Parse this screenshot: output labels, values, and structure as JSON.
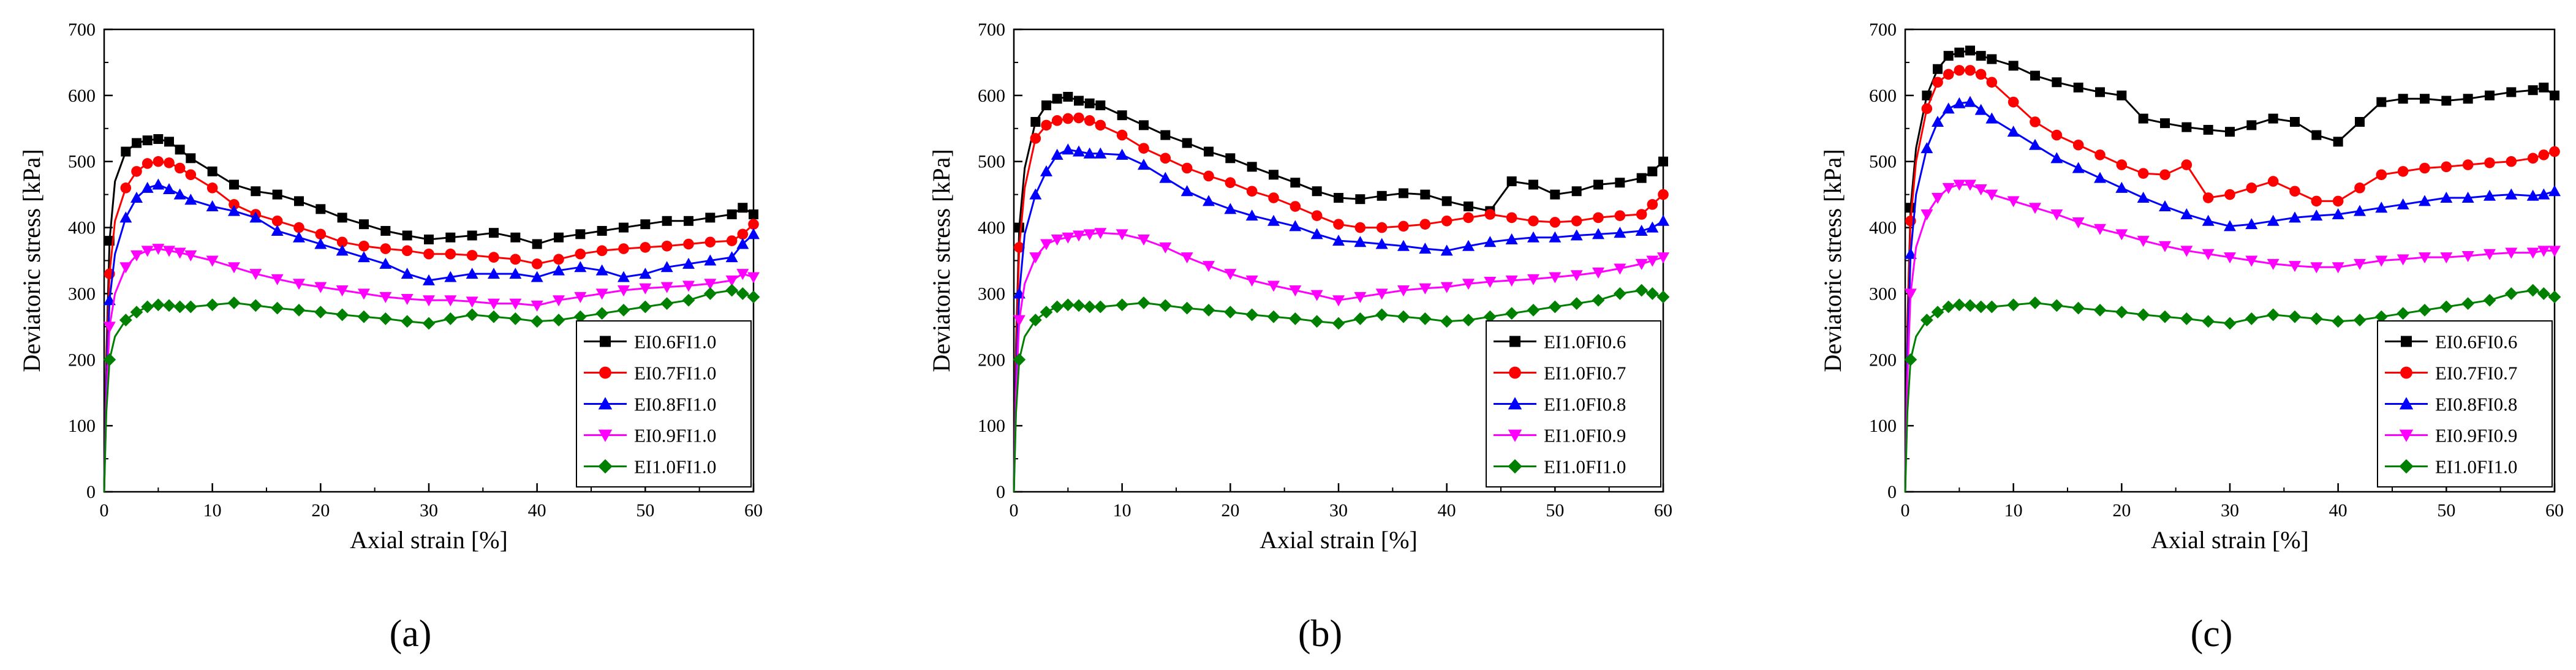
{
  "figure": {
    "common": {
      "xlabel": "Axial strain [%]",
      "ylabel": "Deviatoric stress [kPa]",
      "xlim": [
        0,
        60
      ],
      "ylim": [
        0,
        700
      ],
      "xticks": [
        0,
        10,
        20,
        30,
        40,
        50,
        60
      ],
      "yticks": [
        0,
        100,
        200,
        300,
        400,
        500,
        600,
        700
      ],
      "colors": [
        "#000000",
        "#ff0000",
        "#0000ff",
        "#ff00ff",
        "#008000"
      ],
      "markers": [
        "square",
        "circle",
        "triangle-up",
        "triangle-down",
        "diamond"
      ]
    }
  },
  "chart_data": [
    {
      "type": "line",
      "panel_label": "(a)",
      "title": "",
      "xlabel": "Axial strain [%]",
      "ylabel": "Deviatoric stress [kPa]",
      "xlim": [
        0,
        60
      ],
      "ylim": [
        0,
        700
      ],
      "legend_position": "lower-right",
      "x": [
        0,
        0.2,
        0.5,
        1,
        2,
        3,
        4,
        5,
        6,
        7,
        8,
        10,
        12,
        14,
        16,
        18,
        20,
        22,
        24,
        26,
        28,
        30,
        32,
        34,
        36,
        38,
        40,
        42,
        44,
        46,
        48,
        50,
        52,
        54,
        56,
        58,
        59,
        60
      ],
      "series": [
        {
          "name": "EI0.6FI1.0",
          "values": [
            0,
            200,
            380,
            470,
            515,
            528,
            532,
            534,
            530,
            518,
            505,
            485,
            465,
            455,
            450,
            440,
            428,
            415,
            405,
            395,
            388,
            382,
            385,
            388,
            392,
            385,
            375,
            385,
            390,
            395,
            400,
            405,
            410,
            410,
            415,
            420,
            430,
            420
          ]
        },
        {
          "name": "EI0.7FI1.0",
          "values": [
            0,
            180,
            330,
            410,
            460,
            485,
            497,
            500,
            498,
            490,
            480,
            460,
            435,
            420,
            410,
            400,
            390,
            378,
            372,
            368,
            365,
            360,
            360,
            358,
            355,
            352,
            345,
            352,
            360,
            365,
            368,
            370,
            372,
            375,
            378,
            380,
            390,
            405
          ]
        },
        {
          "name": "EI0.8FI1.0",
          "values": [
            0,
            160,
            290,
            360,
            415,
            445,
            460,
            465,
            458,
            450,
            442,
            432,
            425,
            415,
            395,
            385,
            375,
            365,
            355,
            345,
            330,
            320,
            325,
            330,
            330,
            330,
            325,
            335,
            340,
            335,
            325,
            330,
            340,
            345,
            350,
            355,
            375,
            390
          ]
        },
        {
          "name": "EI0.9FI1.0",
          "values": [
            0,
            140,
            250,
            300,
            340,
            358,
            365,
            368,
            365,
            362,
            358,
            350,
            340,
            330,
            322,
            315,
            310,
            305,
            300,
            295,
            292,
            290,
            290,
            288,
            285,
            285,
            282,
            290,
            295,
            300,
            305,
            308,
            310,
            312,
            315,
            320,
            330,
            325
          ]
        },
        {
          "name": "EI1.0FI1.0",
          "values": [
            0,
            120,
            200,
            235,
            260,
            272,
            280,
            283,
            282,
            280,
            280,
            283,
            286,
            282,
            278,
            275,
            272,
            268,
            265,
            262,
            258,
            255,
            262,
            268,
            265,
            262,
            258,
            260,
            265,
            270,
            275,
            280,
            285,
            290,
            300,
            305,
            300,
            295
          ]
        }
      ]
    },
    {
      "type": "line",
      "panel_label": "(b)",
      "title": "",
      "xlabel": "Axial strain [%]",
      "ylabel": "Deviatoric stress [kPa]",
      "xlim": [
        0,
        60
      ],
      "ylim": [
        0,
        700
      ],
      "legend_position": "lower-right",
      "x": [
        0,
        0.2,
        0.5,
        1,
        2,
        3,
        4,
        5,
        6,
        7,
        8,
        10,
        12,
        14,
        16,
        18,
        20,
        22,
        24,
        26,
        28,
        30,
        32,
        34,
        36,
        38,
        40,
        42,
        44,
        46,
        48,
        50,
        52,
        54,
        56,
        58,
        59,
        60
      ],
      "series": [
        {
          "name": "EI1.0FI0.6",
          "values": [
            0,
            220,
            400,
            490,
            560,
            585,
            595,
            598,
            592,
            588,
            585,
            570,
            555,
            540,
            528,
            515,
            505,
            492,
            480,
            468,
            455,
            445,
            443,
            448,
            452,
            450,
            440,
            432,
            425,
            470,
            465,
            450,
            455,
            465,
            468,
            475,
            485,
            500
          ]
        },
        {
          "name": "EI1.0FI0.7",
          "values": [
            0,
            200,
            370,
            460,
            535,
            555,
            562,
            565,
            566,
            562,
            555,
            540,
            520,
            505,
            490,
            478,
            468,
            455,
            445,
            432,
            418,
            405,
            400,
            400,
            402,
            405,
            410,
            415,
            420,
            415,
            410,
            408,
            410,
            415,
            418,
            420,
            435,
            450
          ]
        },
        {
          "name": "EI1.0FI0.8",
          "values": [
            0,
            170,
            300,
            390,
            450,
            485,
            510,
            518,
            515,
            512,
            512,
            510,
            495,
            475,
            455,
            440,
            428,
            418,
            410,
            402,
            390,
            380,
            378,
            375,
            372,
            368,
            365,
            372,
            378,
            382,
            385,
            385,
            388,
            390,
            392,
            395,
            400,
            410
          ]
        },
        {
          "name": "EI1.0FI0.9",
          "values": [
            0,
            150,
            260,
            315,
            355,
            375,
            382,
            385,
            388,
            390,
            392,
            390,
            382,
            370,
            355,
            342,
            330,
            320,
            312,
            305,
            298,
            290,
            295,
            300,
            305,
            308,
            310,
            315,
            318,
            320,
            322,
            325,
            328,
            332,
            338,
            345,
            350,
            355
          ]
        },
        {
          "name": "EI1.0FI1.0",
          "values": [
            0,
            120,
            200,
            235,
            260,
            272,
            280,
            283,
            282,
            280,
            280,
            283,
            286,
            282,
            278,
            275,
            272,
            268,
            265,
            262,
            258,
            255,
            262,
            268,
            265,
            262,
            258,
            260,
            265,
            270,
            275,
            280,
            285,
            290,
            300,
            305,
            300,
            295
          ]
        }
      ]
    },
    {
      "type": "line",
      "panel_label": "(c)",
      "title": "",
      "xlabel": "Axial strain [%]",
      "ylabel": "Deviatoric stress [kPa]",
      "xlim": [
        0,
        60
      ],
      "ylim": [
        0,
        700
      ],
      "legend_position": "lower-right",
      "x": [
        0,
        0.2,
        0.5,
        1,
        2,
        3,
        4,
        5,
        6,
        7,
        8,
        10,
        12,
        14,
        16,
        18,
        20,
        22,
        24,
        26,
        28,
        30,
        32,
        34,
        36,
        38,
        40,
        42,
        44,
        46,
        48,
        50,
        52,
        54,
        56,
        58,
        59,
        60
      ],
      "series": [
        {
          "name": "EI0.6FI0.6",
          "values": [
            0,
            250,
            430,
            520,
            600,
            640,
            660,
            665,
            668,
            660,
            655,
            645,
            630,
            620,
            612,
            605,
            600,
            565,
            558,
            552,
            548,
            545,
            555,
            565,
            560,
            540,
            530,
            560,
            590,
            595,
            595,
            592,
            595,
            600,
            605,
            608,
            612,
            600
          ]
        },
        {
          "name": "EI0.7FI0.7",
          "values": [
            0,
            230,
            410,
            500,
            580,
            620,
            632,
            638,
            638,
            632,
            620,
            590,
            560,
            540,
            525,
            510,
            495,
            482,
            480,
            495,
            445,
            450,
            460,
            470,
            455,
            440,
            440,
            460,
            480,
            485,
            490,
            492,
            495,
            498,
            500,
            505,
            510,
            515
          ]
        },
        {
          "name": "EI0.8FI0.8",
          "values": [
            0,
            200,
            360,
            450,
            520,
            560,
            580,
            588,
            590,
            578,
            565,
            545,
            525,
            505,
            490,
            475,
            460,
            445,
            432,
            420,
            410,
            402,
            405,
            410,
            415,
            418,
            420,
            425,
            430,
            435,
            440,
            445,
            445,
            448,
            450,
            448,
            450,
            455
          ]
        },
        {
          "name": "EI0.9FI0.9",
          "values": [
            0,
            170,
            300,
            370,
            420,
            445,
            460,
            465,
            465,
            458,
            450,
            440,
            430,
            420,
            408,
            398,
            390,
            380,
            372,
            365,
            360,
            355,
            350,
            345,
            342,
            340,
            340,
            345,
            350,
            352,
            355,
            355,
            357,
            360,
            362,
            362,
            365,
            365
          ]
        },
        {
          "name": "EI1.0FI1.0",
          "values": [
            0,
            120,
            200,
            235,
            260,
            272,
            280,
            283,
            282,
            280,
            280,
            283,
            286,
            282,
            278,
            275,
            272,
            268,
            265,
            262,
            258,
            255,
            262,
            268,
            265,
            262,
            258,
            260,
            265,
            270,
            275,
            280,
            285,
            290,
            300,
            305,
            300,
            295
          ]
        }
      ]
    }
  ]
}
